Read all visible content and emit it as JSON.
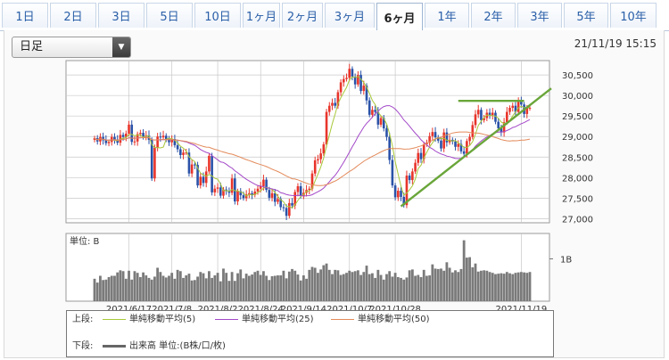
{
  "period_tabs": [
    {
      "label": "1日",
      "active": false
    },
    {
      "label": "2日",
      "active": false
    },
    {
      "label": "3日",
      "active": false
    },
    {
      "label": "5日",
      "active": false
    },
    {
      "label": "10日",
      "active": false
    },
    {
      "label": "1ヶ月",
      "active": false
    },
    {
      "label": "2ヶ月",
      "active": false
    },
    {
      "label": "3ヶ月",
      "active": false
    },
    {
      "label": "6ヶ月",
      "active": true
    },
    {
      "label": "1年",
      "active": false
    },
    {
      "label": "2年",
      "active": false
    },
    {
      "label": "3年",
      "active": false
    },
    {
      "label": "5年",
      "active": false
    },
    {
      "label": "10年",
      "active": false
    }
  ],
  "controls": {
    "bar_select_value": "日足",
    "dropdown_icon": "triangle-down-icon"
  },
  "timestamp": "21/11/19 15:15",
  "colors": {
    "up": "#e8352b",
    "down": "#2a52a8",
    "ma5": "#a8c83a",
    "ma25": "#a348c8",
    "ma50": "#e38a5a",
    "volume": "#7a7a7a",
    "trendline": "#6aa63a",
    "grid": "#c8c8c8"
  },
  "chart_data": {
    "type": "candlestick",
    "price_axis": {
      "ticks": [
        27000,
        27500,
        28000,
        28500,
        29000,
        29500,
        30000,
        30500
      ],
      "tick_labels": [
        "27,000",
        "27,500",
        "28,000",
        "28,500",
        "29,000",
        "29,500",
        "30,000",
        "30,500"
      ],
      "range": [
        26900,
        30850
      ]
    },
    "date_labels": [
      "2021/6/17",
      "2021/7/8",
      "2021/8/2",
      "2021/8/24",
      "2021/9/14",
      "2021/10/7",
      "2021/10/28",
      "2021/11/19"
    ],
    "volume_axis": {
      "unit_label": "単位: B",
      "tick_label": "1B"
    },
    "closes": [
      28960,
      28880,
      28990,
      28910,
      28840,
      28870,
      28990,
      28930,
      28850,
      29040,
      28990,
      29070,
      29290,
      28870,
      28880,
      29060,
      29090,
      29000,
      29030,
      28920,
      27980,
      28730,
      29000,
      28980,
      29020,
      28940,
      28860,
      28940,
      28790,
      28690,
      28550,
      28610,
      28610,
      28100,
      28320,
      28310,
      27810,
      28020,
      27870,
      28150,
      28530,
      27640,
      27730,
      27760,
      27560,
      27710,
      27670,
      27630,
      27980,
      27420,
      27670,
      27570,
      27500,
      27590,
      27620,
      27580,
      27660,
      27730,
      27790,
      27950,
      27700,
      27510,
      27620,
      27410,
      27480,
      27280,
      27260,
      27070,
      27380,
      27320,
      27650,
      27790,
      27550,
      27630,
      27700,
      27730,
      28100,
      28420,
      28450,
      28590,
      28810,
      29600,
      29750,
      29820,
      29750,
      30080,
      30320,
      30400,
      30430,
      30650,
      30460,
      30270,
      30500,
      30110,
      30240,
      29880,
      29530,
      29650,
      29600,
      29290,
      29450,
      29200,
      28990,
      28430,
      27810,
      27520,
      27680,
      27530,
      27330,
      28050,
      27940,
      28150,
      28360,
      28600,
      28450,
      28810,
      28850,
      29010,
      29110,
      28980,
      28900,
      28710,
      29100,
      28860,
      28920,
      28880,
      28750,
      28820,
      28640,
      28580,
      28890,
      28990,
      29280,
      29540,
      29650,
      29400,
      29450,
      29580,
      29520,
      29580,
      29360,
      29200,
      29100,
      29350,
      29600,
      29700,
      29750,
      29600,
      29850,
      29780,
      29550,
      29690,
      29700
    ],
    "volumes_billion": [
      0.53,
      0.44,
      0.6,
      0.5,
      0.51,
      0.57,
      0.6,
      0.6,
      0.68,
      0.73,
      0.71,
      0.53,
      0.72,
      0.51,
      0.71,
      0.67,
      0.57,
      0.68,
      0.61,
      0.55,
      0.51,
      0.58,
      0.79,
      0.69,
      0.6,
      0.56,
      0.6,
      0.67,
      0.53,
      0.74,
      0.71,
      0.55,
      0.61,
      0.65,
      0.49,
      0.5,
      0.58,
      0.69,
      0.66,
      0.54,
      0.71,
      0.55,
      0.61,
      0.67,
      0.47,
      0.77,
      0.67,
      0.48,
      0.69,
      0.48,
      0.66,
      0.75,
      0.54,
      0.65,
      0.6,
      0.63,
      0.69,
      0.72,
      0.62,
      0.71,
      0.6,
      0.5,
      0.59,
      0.6,
      0.61,
      0.61,
      0.72,
      0.54,
      0.7,
      0.76,
      0.72,
      0.63,
      0.49,
      0.61,
      0.53,
      0.74,
      0.81,
      0.79,
      0.67,
      0.75,
      0.85,
      0.89,
      0.74,
      0.64,
      0.74,
      0.73,
      0.62,
      0.64,
      0.67,
      0.72,
      0.69,
      0.71,
      0.73,
      0.62,
      0.69,
      0.84,
      0.64,
      0.66,
      0.55,
      0.74,
      0.62,
      0.51,
      0.64,
      0.71,
      0.58,
      0.67,
      0.57,
      0.55,
      0.51,
      0.56,
      0.73,
      0.75,
      0.6,
      0.62,
      0.57,
      0.74,
      0.6,
      0.61,
      0.87,
      0.77,
      0.76,
      0.77,
      0.72,
      0.92,
      0.79,
      0.68,
      0.73,
      0.69,
      0.76,
      1.44,
      1.03,
      1.04,
      0.8,
      0.89,
      0.7,
      0.72,
      0.73,
      0.72,
      0.69,
      0.67,
      0.64,
      0.65,
      0.66,
      0.65,
      0.69,
      0.66,
      0.64,
      0.67,
      0.68,
      0.69,
      0.68,
      0.67,
      0.69
    ],
    "moving_averages": [
      {
        "name": "単純移動平均(5)",
        "period": 5
      },
      {
        "name": "単純移動平均(25)",
        "period": 25
      },
      {
        "name": "単純移動平均(50)",
        "period": 50
      }
    ],
    "trendlines": [
      {
        "kind": "support",
        "from": [
          107,
          27300
        ],
        "to": [
          152,
          30000
        ]
      },
      {
        "kind": "resistance",
        "from": [
          127,
          29870
        ],
        "to": [
          150,
          29870
        ]
      }
    ],
    "grid": true
  },
  "legend": {
    "upper_label": "上段:",
    "lower_label": "下段:",
    "ma5_label": "単純移動平均(5)",
    "ma25_label": "単純移動平均(25)",
    "ma50_label": "単純移動平均(50)",
    "volume_label": "出来高 単位:(B株/口/枚)"
  }
}
